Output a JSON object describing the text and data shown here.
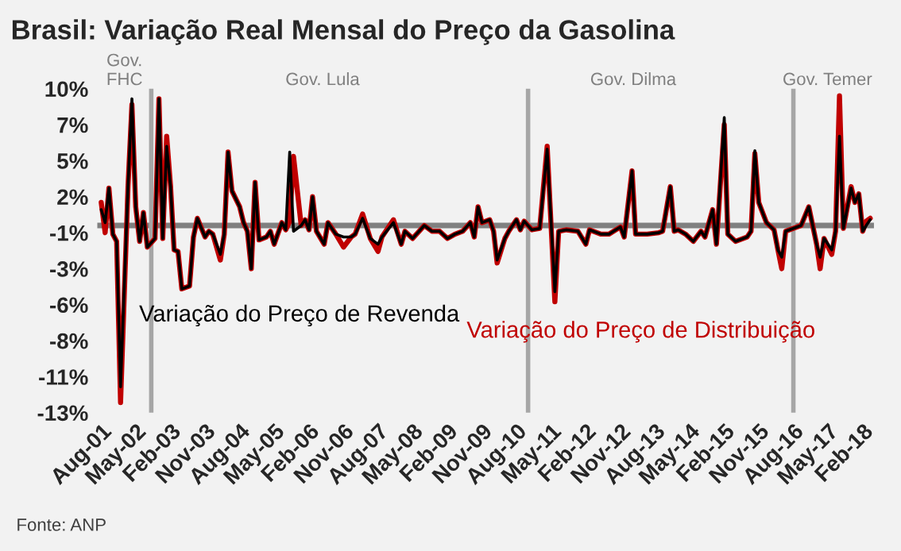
{
  "chart_data": {
    "type": "line",
    "title": "Brasil: Variação Real Mensal do Preço da Gasolina",
    "x": [
      "2001-08",
      "2001-09",
      "2001-10",
      "2001-11",
      "2001-12",
      "2002-01",
      "2002-03",
      "2002-04",
      "2002-05",
      "2002-06",
      "2002-07",
      "2002-08",
      "2002-10",
      "2002-11",
      "2002-12",
      "2003-01",
      "2003-02",
      "2003-03",
      "2003-04",
      "2003-05",
      "2003-07",
      "2003-08",
      "2003-09",
      "2003-11",
      "2003-12",
      "2004-01",
      "2004-03",
      "2004-04",
      "2004-05",
      "2004-06",
      "2004-08",
      "2004-09",
      "2004-10",
      "2004-11",
      "2004-12",
      "2005-01",
      "2005-03",
      "2005-04",
      "2005-05",
      "2005-07",
      "2005-08",
      "2005-09",
      "2005-10",
      "2005-12",
      "2006-01",
      "2006-02",
      "2006-03",
      "2006-04",
      "2006-06",
      "2006-07",
      "2006-09",
      "2006-11",
      "2007-01",
      "2007-02",
      "2007-04",
      "2007-06",
      "2007-08",
      "2007-09",
      "2007-12",
      "2008-02",
      "2008-03",
      "2008-05",
      "2008-08",
      "2008-10",
      "2008-12",
      "2009-02",
      "2009-04",
      "2009-06",
      "2009-08",
      "2009-09",
      "2009-10",
      "2009-11",
      "2010-01",
      "2010-02",
      "2010-03",
      "2010-05",
      "2010-06",
      "2010-08",
      "2010-09",
      "2010-10",
      "2010-12",
      "2011-02",
      "2011-04",
      "2011-06",
      "2011-07",
      "2011-09",
      "2011-12",
      "2012-02",
      "2012-03",
      "2012-06",
      "2012-08",
      "2012-11",
      "2012-12",
      "2013-02",
      "2013-03",
      "2013-06",
      "2013-09",
      "2013-10",
      "2013-12",
      "2014-01",
      "2014-02",
      "2014-04",
      "2014-06",
      "2014-08",
      "2014-09",
      "2014-11",
      "2014-12",
      "2015-02",
      "2015-03",
      "2015-05",
      "2015-08",
      "2015-09",
      "2015-10",
      "2015-11",
      "2016-01",
      "2016-03",
      "2016-04",
      "2016-05",
      "2016-06",
      "2016-10",
      "2016-12",
      "2017-02",
      "2017-03",
      "2017-04",
      "2017-06",
      "2017-07",
      "2017-08",
      "2017-09",
      "2017-11",
      "2017-12",
      "2018-01",
      "2018-02",
      "2018-03",
      "2018-04"
    ],
    "series": [
      {
        "name": "Variação do Preço de Distribuição",
        "color": "#c00000",
        "values": [
          1.6,
          -0.5,
          2.6,
          -0.6,
          -1.1,
          -12.3,
          2.7,
          8.4,
          1.3,
          -1.1,
          0.9,
          -1.5,
          -0.9,
          8.8,
          -0.9,
          6.2,
          2.7,
          -1.7,
          -1.8,
          -4.4,
          -4.2,
          -0.8,
          0.5,
          -0.8,
          -0.4,
          -0.6,
          -2.4,
          -0.6,
          5.1,
          2.4,
          1.3,
          0.2,
          -0.4,
          -3.0,
          3.0,
          -1.0,
          -0.8,
          -0.4,
          -1.3,
          0.2,
          -0.3,
          0.3,
          4.8,
          0.0,
          0.4,
          -0.3,
          2.0,
          -0.4,
          -1.3,
          0.2,
          -0.6,
          -1.5,
          -0.8,
          -0.6,
          0.8,
          -0.9,
          -1.8,
          -0.8,
          0.4,
          -1.3,
          -0.4,
          -0.9,
          0.0,
          -0.4,
          -0.4,
          -0.9,
          -0.6,
          -0.4,
          0.2,
          -0.8,
          1.3,
          0.2,
          0.4,
          -0.4,
          -2.6,
          -0.9,
          -0.4,
          0.4,
          -0.3,
          0.3,
          -0.3,
          -0.2,
          5.5,
          -5.3,
          -0.4,
          -0.3,
          -0.4,
          -1.3,
          -0.3,
          -0.6,
          -0.6,
          -0.1,
          -0.8,
          3.8,
          -0.6,
          -0.6,
          -0.5,
          -0.4,
          2.7,
          -0.4,
          -0.3,
          -0.6,
          -1.1,
          -0.4,
          -0.8,
          1.1,
          -1.3,
          7.0,
          -0.6,
          -1.1,
          -0.8,
          -0.4,
          5.0,
          1.6,
          0.2,
          -0.3,
          -1.7,
          -3.0,
          -0.4,
          0.0,
          1.3,
          -1.3,
          -3.0,
          -0.9,
          -2.0,
          -0.4,
          9.0,
          -0.2,
          2.7,
          1.6,
          2.2,
          -0.4,
          0.3,
          0.5
        ]
      },
      {
        "name": "Variação do Preço de Revenda",
        "color": "#000000",
        "values": [
          1.1,
          0.2,
          2.6,
          -0.6,
          -1.1,
          -11.2,
          2.7,
          8.8,
          1.3,
          -1.1,
          0.9,
          -1.5,
          -0.9,
          8.8,
          -0.9,
          5.5,
          2.7,
          -1.7,
          -1.8,
          -4.4,
          -4.2,
          -0.8,
          0.5,
          -0.8,
          -0.4,
          -0.6,
          -2.0,
          -0.6,
          5.1,
          2.4,
          1.3,
          0.2,
          -0.4,
          -3.0,
          3.0,
          -1.0,
          -0.8,
          -0.4,
          -1.3,
          0.2,
          -0.3,
          5.1,
          -0.4,
          0.0,
          0.4,
          -0.3,
          2.0,
          -0.4,
          -1.3,
          0.2,
          -0.6,
          -0.8,
          -0.8,
          -0.6,
          0.5,
          -0.9,
          -1.3,
          -0.8,
          0.2,
          -1.3,
          -0.4,
          -0.9,
          0.0,
          -0.4,
          -0.4,
          -0.9,
          -0.6,
          -0.4,
          0.2,
          -0.8,
          1.3,
          0.2,
          0.4,
          -0.4,
          -2.4,
          -0.9,
          -0.4,
          0.4,
          -0.3,
          0.3,
          -0.3,
          -0.2,
          5.3,
          -4.6,
          -0.4,
          -0.3,
          -0.4,
          -1.3,
          -0.3,
          -0.6,
          -0.6,
          -0.1,
          -0.8,
          3.8,
          -0.6,
          -0.6,
          -0.5,
          -0.4,
          2.7,
          -0.4,
          -0.3,
          -0.6,
          -1.1,
          -0.4,
          -0.8,
          1.1,
          -1.3,
          7.5,
          -0.6,
          -1.1,
          -0.8,
          -0.4,
          5.2,
          1.6,
          0.2,
          -0.3,
          -1.7,
          -2.2,
          -0.4,
          0.0,
          1.3,
          -1.3,
          -2.2,
          -0.9,
          -1.7,
          -0.4,
          6.2,
          -0.2,
          2.6,
          1.6,
          2.2,
          -0.4,
          0.0,
          0.4
        ]
      }
    ],
    "xlim": [
      "2001-07",
      "2018-05"
    ],
    "xticks": [
      {
        "value": "2001-08",
        "label": "Aug-01"
      },
      {
        "value": "2002-05",
        "label": "May-02"
      },
      {
        "value": "2003-02",
        "label": "Feb-03"
      },
      {
        "value": "2003-11",
        "label": "Nov-03"
      },
      {
        "value": "2004-08",
        "label": "Aug-04"
      },
      {
        "value": "2005-05",
        "label": "May-05"
      },
      {
        "value": "2006-02",
        "label": "Feb-06"
      },
      {
        "value": "2006-11",
        "label": "Nov-06"
      },
      {
        "value": "2007-08",
        "label": "Aug-07"
      },
      {
        "value": "2008-05",
        "label": "May-08"
      },
      {
        "value": "2009-02",
        "label": "Feb-09"
      },
      {
        "value": "2009-11",
        "label": "Nov-09"
      },
      {
        "value": "2010-08",
        "label": "Aug-10"
      },
      {
        "value": "2011-05",
        "label": "May-11"
      },
      {
        "value": "2012-02",
        "label": "Feb-12"
      },
      {
        "value": "2012-11",
        "label": "Nov-12"
      },
      {
        "value": "2013-08",
        "label": "Aug-13"
      },
      {
        "value": "2014-05",
        "label": "May-14"
      },
      {
        "value": "2015-02",
        "label": "Feb-15"
      },
      {
        "value": "2015-11",
        "label": "Nov-15"
      },
      {
        "value": "2016-08",
        "label": "Aug-16"
      },
      {
        "value": "2017-05",
        "label": "May-17"
      },
      {
        "value": "2018-02",
        "label": "Feb-18"
      }
    ],
    "ylim": [
      -13,
      9.5
    ],
    "yticks": [
      {
        "value": -13,
        "label": "-13%"
      },
      {
        "value": -10.5,
        "label": "-11%"
      },
      {
        "value": -8,
        "label": "-8%"
      },
      {
        "value": -5.5,
        "label": "-6%"
      },
      {
        "value": -3,
        "label": "-3%"
      },
      {
        "value": -0.5,
        "label": "-1%"
      },
      {
        "value": 2,
        "label": "2%"
      },
      {
        "value": 4.5,
        "label": "5%"
      },
      {
        "value": 7,
        "label": "7%"
      },
      {
        "value": 9.5,
        "label": "10%"
      }
    ],
    "ref_lines": [
      {
        "axis": "y",
        "value": 0,
        "color": "#808080"
      },
      {
        "axis": "x",
        "value": "2002-09",
        "color": "#a6a6a6"
      },
      {
        "axis": "x",
        "value": "2010-11",
        "color": "#a6a6a6"
      },
      {
        "axis": "x",
        "value": "2016-08",
        "color": "#a6a6a6"
      }
    ],
    "annotations": [
      "Gov.\nFHC",
      "Gov. Lula",
      "Gov. Dilma",
      "Gov. Temer",
      "Fonte: ANP"
    ],
    "line_style": "solid",
    "marker": "none",
    "grid": false,
    "legend": false
  }
}
